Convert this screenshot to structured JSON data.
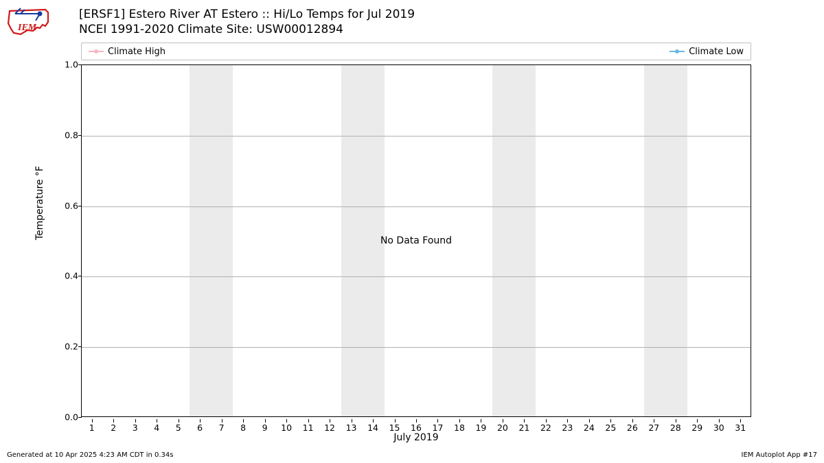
{
  "title_line1": "[ERSF1] Estero River  AT Estero :: Hi/Lo Temps for Jul 2019",
  "title_line2": "NCEI 1991-2020 Climate Site: USW00012894",
  "legend": {
    "high": {
      "label": "Climate High",
      "color": "#f7b6c2"
    },
    "low": {
      "label": "Climate Low",
      "color": "#6bb7e6"
    }
  },
  "chart": {
    "type": "line-empty",
    "background_color": "#ffffff",
    "weekend_band_color": "#ebebeb",
    "grid_color": "#b0b0b0",
    "border_color": "#000000",
    "ylim": [
      0.0,
      1.0
    ],
    "yticks": [
      0.0,
      0.2,
      0.4,
      0.6,
      0.8,
      1.0
    ],
    "ytick_labels": [
      "0.0",
      "0.2",
      "0.4",
      "0.6",
      "0.8",
      "1.0"
    ],
    "x_days": [
      1,
      2,
      3,
      4,
      5,
      6,
      7,
      8,
      9,
      10,
      11,
      12,
      13,
      14,
      15,
      16,
      17,
      18,
      19,
      20,
      21,
      22,
      23,
      24,
      25,
      26,
      27,
      28,
      29,
      30,
      31
    ],
    "weekend_pairs": [
      [
        6,
        7
      ],
      [
        13,
        14
      ],
      [
        20,
        21
      ],
      [
        27,
        28
      ]
    ],
    "center_message": "No Data Found",
    "ylabel": "Temperature °F",
    "xlabel": "July 2019"
  },
  "footer": {
    "left": "Generated at 10 Apr 2025 4:23 AM CDT in 0.34s",
    "right": "IEM Autoplot App #17"
  },
  "logo": {
    "outline_color": "#d11919",
    "accent_color": "#1a3a9e",
    "text": "IEM"
  }
}
